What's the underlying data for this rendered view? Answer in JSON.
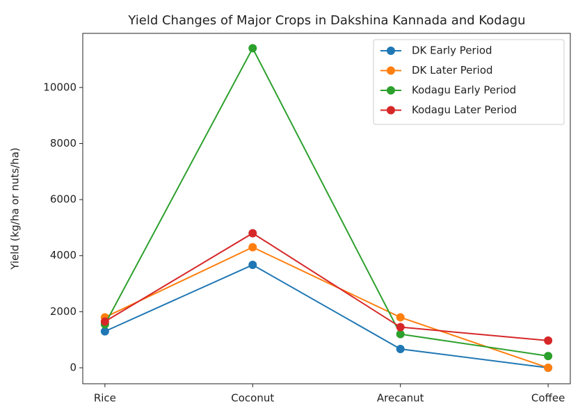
{
  "chart_data": {
    "type": "line",
    "title": "Yield Changes of Major Crops in Dakshina Kannada and Kodagu",
    "y_label": "Yield (kg/ha or nuts/ha)",
    "categories": [
      "Rice",
      "Coconut",
      "Arecanut",
      "Coffee"
    ],
    "series": [
      {
        "name": "DK Early Period",
        "color": "#1f77b4",
        "values": [
          1300,
          3670,
          670,
          0
        ]
      },
      {
        "name": "DK Later Period",
        "color": "#ff7f0e",
        "values": [
          1800,
          4300,
          1800,
          0
        ]
      },
      {
        "name": "Kodagu Early Period",
        "color": "#2ca02c",
        "values": [
          1550,
          11400,
          1200,
          420
        ]
      },
      {
        "name": "Kodagu Later Period",
        "color": "#d62728",
        "values": [
          1650,
          4800,
          1450,
          970
        ]
      }
    ],
    "ylim": [
      -570,
      11930
    ],
    "yticks": [
      0,
      2000,
      4000,
      6000,
      8000,
      10000
    ],
    "legend": "upper right"
  }
}
